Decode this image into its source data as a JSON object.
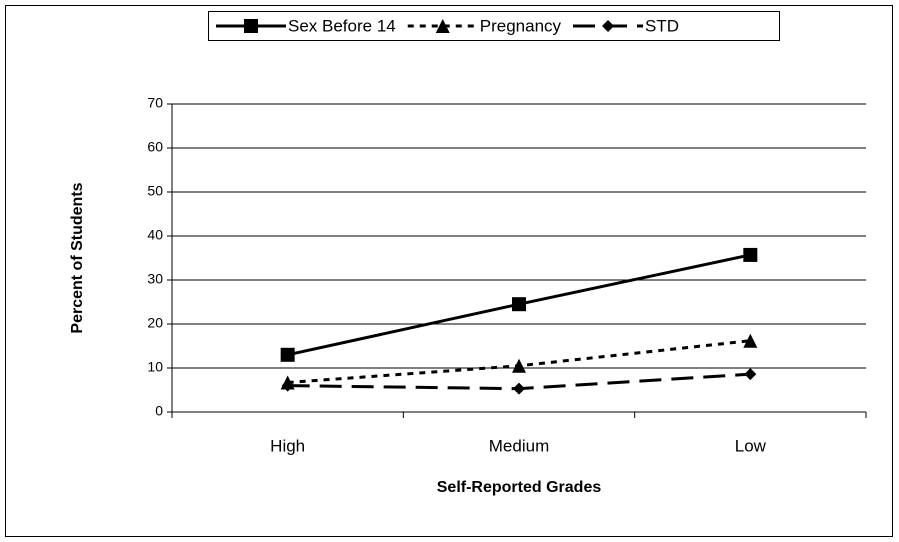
{
  "chart_data": {
    "type": "line",
    "xlabel": "Self-Reported Grades",
    "ylabel": "Percent of Students",
    "categories": [
      "High",
      "Medium",
      "Low"
    ],
    "series": [
      {
        "name": "Sex Before 14",
        "color": "#000000",
        "dash": "solid",
        "marker": "square",
        "values": [
          13,
          24.5,
          35.7
        ]
      },
      {
        "name": "Pregnancy",
        "color": "#000000",
        "dash": "dotted",
        "marker": "triangle",
        "values": [
          6.7,
          10.5,
          16.2
        ]
      },
      {
        "name": "STD",
        "color": "#000000",
        "dash": "dashed",
        "marker": "diamond",
        "values": [
          6,
          5.3,
          8.6
        ]
      }
    ],
    "ylim": [
      0,
      70
    ],
    "yticks": [
      0,
      10,
      20,
      30,
      40,
      50,
      60,
      70
    ],
    "grid": true,
    "legend": "top"
  }
}
